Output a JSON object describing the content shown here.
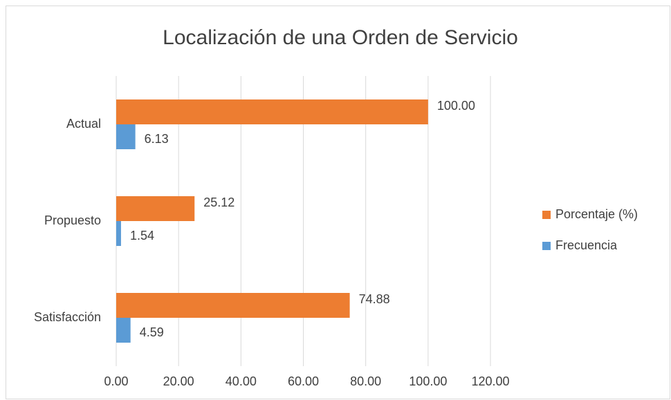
{
  "chart_data": {
    "type": "barh",
    "title": "Localización de una Orden de Servicio",
    "categories": [
      "Actual",
      "Propuesto",
      "Satisfacción"
    ],
    "series": [
      {
        "name": "Porcentaje (%)",
        "color": "#ed7d31",
        "values": [
          100,
          25.12,
          74.88
        ],
        "value_labels": [
          "100.00",
          "25.12",
          "74.88"
        ]
      },
      {
        "name": "Frecuencia",
        "color": "#5b9bd5",
        "values": [
          6.13,
          1.54,
          4.59
        ],
        "value_labels": [
          "6.13",
          "1.54",
          "4.59"
        ]
      }
    ],
    "xlim": [
      0,
      120
    ],
    "xticks": [
      {
        "value": 0,
        "label": "0.00"
      },
      {
        "value": 20,
        "label": "20.00"
      },
      {
        "value": 40,
        "label": "40.00"
      },
      {
        "value": 60,
        "label": "60.00"
      },
      {
        "value": 80,
        "label": "80.00"
      },
      {
        "value": 100,
        "label": "100.00"
      },
      {
        "value": 120,
        "label": "120.00"
      }
    ],
    "grid": true,
    "legend": "right"
  }
}
